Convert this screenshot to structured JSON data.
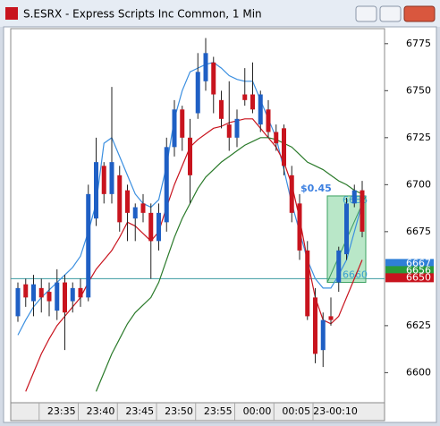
{
  "chart_data": {
    "type": "candlestick",
    "title": "S.ESRX - Express Scripts Inc Common, 1 Min",
    "categories": [
      null,
      null,
      null,
      null,
      null,
      "23:35",
      null,
      null,
      null,
      null,
      "23:40",
      null,
      null,
      null,
      null,
      "23:45",
      null,
      null,
      null,
      null,
      "23:50",
      null,
      null,
      null,
      null,
      "23:55",
      null,
      null,
      null,
      null,
      "00:00",
      null,
      null,
      null,
      null,
      "00:05",
      null,
      null,
      null,
      null,
      "23-00:10",
      null,
      null,
      null,
      null
    ],
    "open": [
      6630,
      6647,
      6638,
      6645,
      6643,
      6633,
      6648,
      6638,
      6645,
      6640,
      6682,
      6710,
      6695,
      6705,
      6697,
      6682,
      6690,
      6685,
      6670,
      6680,
      6720,
      6740,
      6725,
      6738,
      6755,
      6765,
      6745,
      6732,
      6725,
      6748,
      6748,
      6732,
      6740,
      6728,
      6730,
      6705,
      6690,
      6665,
      6640,
      6612,
      6630,
      6648,
      6663,
      6690,
      6697
    ],
    "high": [
      6648,
      6650,
      6652,
      6650,
      6648,
      6655,
      6652,
      6648,
      6650,
      6700,
      6725,
      6712,
      6752,
      6710,
      6700,
      6690,
      6695,
      6690,
      6690,
      6725,
      6745,
      6742,
      6735,
      6770,
      6778,
      6768,
      6750,
      6755,
      6740,
      6762,
      6765,
      6750,
      6745,
      6732,
      6732,
      6710,
      6695,
      6670,
      6645,
      6632,
      6640,
      6667,
      6693,
      6700,
      6702
    ],
    "low": [
      6627,
      6635,
      6630,
      6632,
      6630,
      6628,
      6612,
      6632,
      6635,
      6638,
      6678,
      6690,
      6690,
      6675,
      6670,
      6670,
      6680,
      6650,
      6665,
      6675,
      6715,
      6718,
      6690,
      6735,
      6750,
      6738,
      6730,
      6718,
      6720,
      6742,
      6738,
      6728,
      6725,
      6718,
      6705,
      6680,
      6660,
      6628,
      6605,
      6603,
      6625,
      6643,
      6660,
      6688,
      6672
    ],
    "close": [
      6645,
      6640,
      6647,
      6640,
      6638,
      6648,
      6632,
      6645,
      6640,
      6695,
      6712,
      6695,
      6712,
      6680,
      6685,
      6688,
      6685,
      6670,
      6685,
      6720,
      6740,
      6725,
      6705,
      6760,
      6770,
      6748,
      6735,
      6725,
      6735,
      6745,
      6740,
      6748,
      6728,
      6722,
      6710,
      6685,
      6665,
      6630,
      6610,
      6628,
      6628,
      6665,
      6690,
      6697,
      6675
    ],
    "up_color": "#1f5fc4",
    "down_color": "#c8141e",
    "series": [
      {
        "color": "#3b8fe0",
        "values": [
          6620,
          6628,
          6635,
          6640,
          6644,
          6648,
          6652,
          6656,
          6662,
          6675,
          6690,
          6722,
          6725,
          6715,
          6705,
          6695,
          6690,
          6688,
          6692,
          6710,
          6735,
          6750,
          6760,
          6762,
          6764,
          6765,
          6762,
          6758,
          6756,
          6755,
          6755,
          6745,
          6735,
          6725,
          6708,
          6690,
          6675,
          6660,
          6650,
          6645,
          6645,
          6652,
          6660,
          6675,
          6690
        ]
      },
      {
        "color": "#c8141e",
        "values": [
          null,
          6590,
          6600,
          6610,
          6618,
          6625,
          6630,
          6635,
          6640,
          6648,
          6655,
          6660,
          6665,
          6672,
          6680,
          6678,
          6674,
          6670,
          6675,
          6688,
          6700,
          6710,
          6720,
          6724,
          6727,
          6730,
          6731,
          6733,
          6734,
          6735,
          6735,
          6730,
          6725,
          6720,
          6712,
          6700,
          6682,
          6660,
          6640,
          6628,
          6626,
          6630,
          6640,
          6650,
          6660
        ]
      },
      {
        "color": "#2a7a2a",
        "values": [
          null,
          null,
          null,
          null,
          null,
          null,
          null,
          null,
          null,
          null,
          6590,
          6600,
          6610,
          6618,
          6626,
          6632,
          6636,
          6640,
          6648,
          6660,
          6672,
          6682,
          6690,
          6698,
          6704,
          6708,
          6712,
          6715,
          6718,
          6721,
          6723,
          6725,
          6725,
          6724,
          6722,
          6720,
          6716,
          6712,
          6710,
          6708,
          6705,
          6702,
          6700,
          6697,
          6695
        ]
      }
    ],
    "hline": {
      "value": 6650,
      "color": "#3a9aa0"
    },
    "measure": {
      "from": 40,
      "to": 44,
      "low": 6648,
      "high": 6694,
      "label": "$0.45",
      "top_label": "6686",
      "bottom_label": "6660"
    },
    "price_boxes": [
      {
        "label": "6667",
        "color": "#2f7fd8"
      },
      {
        "label": "6656",
        "color": "#2a9a3a"
      },
      {
        "label": "6650",
        "color": "#c8141e"
      }
    ],
    "ylim": [
      6584,
      6783
    ],
    "yticks": [
      6600,
      6625,
      6675,
      6700,
      6725,
      6750,
      6775
    ]
  }
}
